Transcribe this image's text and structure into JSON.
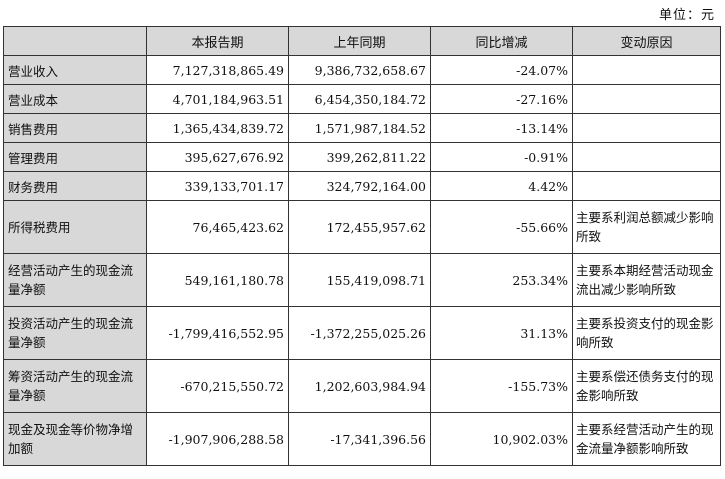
{
  "unit_label": "单位：元",
  "headers": [
    "",
    "本报告期",
    "上年同期",
    "同比增减",
    "变动原因"
  ],
  "rows": [
    {
      "item": "营业收入",
      "current": "7,127,318,865.49",
      "prior": "9,386,732,658.67",
      "change": "-24.07%",
      "reason": ""
    },
    {
      "item": "营业成本",
      "current": "4,701,184,963.51",
      "prior": "6,454,350,184.72",
      "change": "-27.16%",
      "reason": ""
    },
    {
      "item": "销售费用",
      "current": "1,365,434,839.72",
      "prior": "1,571,987,184.52",
      "change": "-13.14%",
      "reason": ""
    },
    {
      "item": "管理费用",
      "current": "395,627,676.92",
      "prior": "399,262,811.22",
      "change": "-0.91%",
      "reason": ""
    },
    {
      "item": "财务费用",
      "current": "339,133,701.17",
      "prior": "324,792,164.00",
      "change": "4.42%",
      "reason": ""
    },
    {
      "item": "所得税费用",
      "current": "76,465,423.62",
      "prior": "172,455,957.62",
      "change": "-55.66%",
      "reason": "主要系利润总额减少影响所致"
    },
    {
      "item": "经营活动产生的现金流量净额",
      "current": "549,161,180.78",
      "prior": "155,419,098.71",
      "change": "253.34%",
      "reason": "主要系本期经营活动现金流出减少影响所致"
    },
    {
      "item": "投资活动产生的现金流量净额",
      "current": "-1,799,416,552.95",
      "prior": "-1,372,255,025.26",
      "change": "31.13%",
      "reason": "主要系投资支付的现金影响所致"
    },
    {
      "item": "筹资活动产生的现金流量净额",
      "current": "-670,215,550.72",
      "prior": "1,202,603,984.94",
      "change": "-155.73%",
      "reason": "主要系偿还债务支付的现金影响所致"
    },
    {
      "item": "现金及现金等价物净增加额",
      "current": "-1,907,906,288.58",
      "prior": "-17,341,396.56",
      "change": "10,902.03%",
      "reason": "主要系经营活动产生的现金流量净额影响所致"
    }
  ]
}
